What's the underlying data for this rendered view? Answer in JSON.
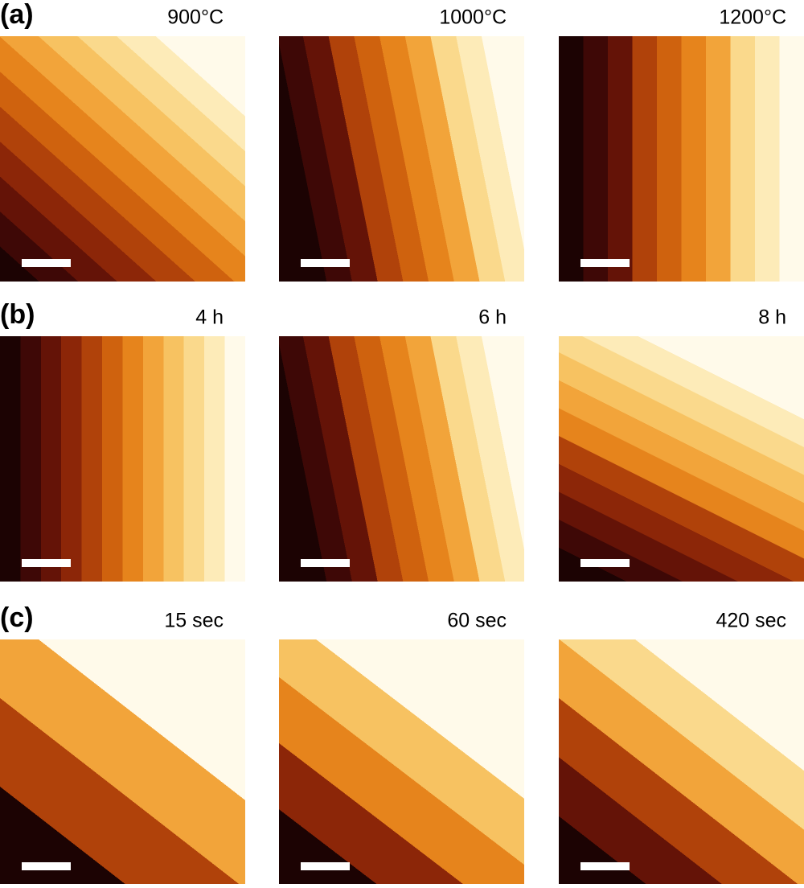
{
  "panels": [
    {
      "label": "(a)",
      "images": [
        {
          "title": "900°C"
        },
        {
          "title": "1000°C"
        },
        {
          "title": "1200°C"
        }
      ]
    },
    {
      "label": "(b)",
      "images": [
        {
          "title": "4 h"
        },
        {
          "title": "6 h"
        },
        {
          "title": "8 h"
        }
      ]
    },
    {
      "label": "(c)",
      "images": [
        {
          "title": "15 sec"
        },
        {
          "title": "60 sec"
        },
        {
          "title": "420 sec"
        }
      ]
    }
  ]
}
